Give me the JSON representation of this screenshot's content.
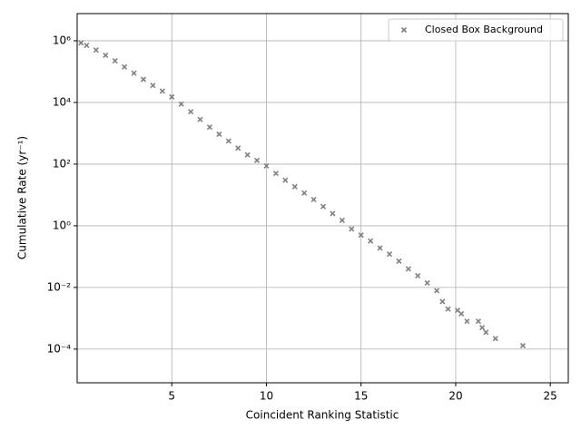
{
  "chart_data": {
    "type": "scatter",
    "x_label": "Coincident Ranking Statistic",
    "y_label": "Cumulative Rate (yr⁻¹)",
    "log_y": true,
    "grid": true,
    "legend_position": "upper right",
    "xlim": [
      0,
      25.95
    ],
    "ylim": [
      8.1e-06,
      7600000
    ],
    "xticks": [
      5,
      10,
      15,
      20,
      25
    ],
    "yticks": [
      {
        "value": 0.0001,
        "label": "10⁻⁴"
      },
      {
        "value": 0.01,
        "label": "10⁻²"
      },
      {
        "value": 1,
        "label": "10⁰"
      },
      {
        "value": 100,
        "label": "10²"
      },
      {
        "value": 10000,
        "label": "10⁴"
      },
      {
        "value": 1000000,
        "label": "10⁶"
      }
    ],
    "series": [
      {
        "name": "Closed Box Background",
        "color": "#808080",
        "marker": "x",
        "x": [
          0.2,
          0.5,
          1,
          1.5,
          2,
          2.5,
          3,
          3.5,
          4,
          4.5,
          5,
          5.5,
          6,
          6.5,
          7,
          7.5,
          8,
          8.5,
          9,
          9.5,
          10,
          10.5,
          11,
          11.5,
          12,
          12.5,
          13,
          13.5,
          14,
          14.5,
          15,
          15.5,
          16,
          16.5,
          17,
          17.5,
          18,
          18.5,
          19,
          19.3,
          19.6,
          20.1,
          20.3,
          20.6,
          21.2,
          21.4,
          21.6,
          22.1,
          23.55
        ],
        "values": [
          851000,
          708000,
          501000,
          339000,
          224000,
          141000,
          89000,
          56000,
          35500,
          23400,
          15100,
          8900,
          5000,
          2800,
          1580,
          930,
          560,
          330,
          200,
          132,
          87,
          50,
          30,
          18.6,
          11.5,
          7.1,
          4.2,
          2.5,
          1.5,
          0.79,
          0.5,
          0.32,
          0.19,
          0.12,
          0.071,
          0.04,
          0.024,
          0.014,
          0.0079,
          0.0035,
          0.002,
          0.0018,
          0.0014,
          0.0008,
          0.0008,
          0.0005,
          0.00035,
          0.00022,
          0.00013
        ]
      }
    ]
  }
}
